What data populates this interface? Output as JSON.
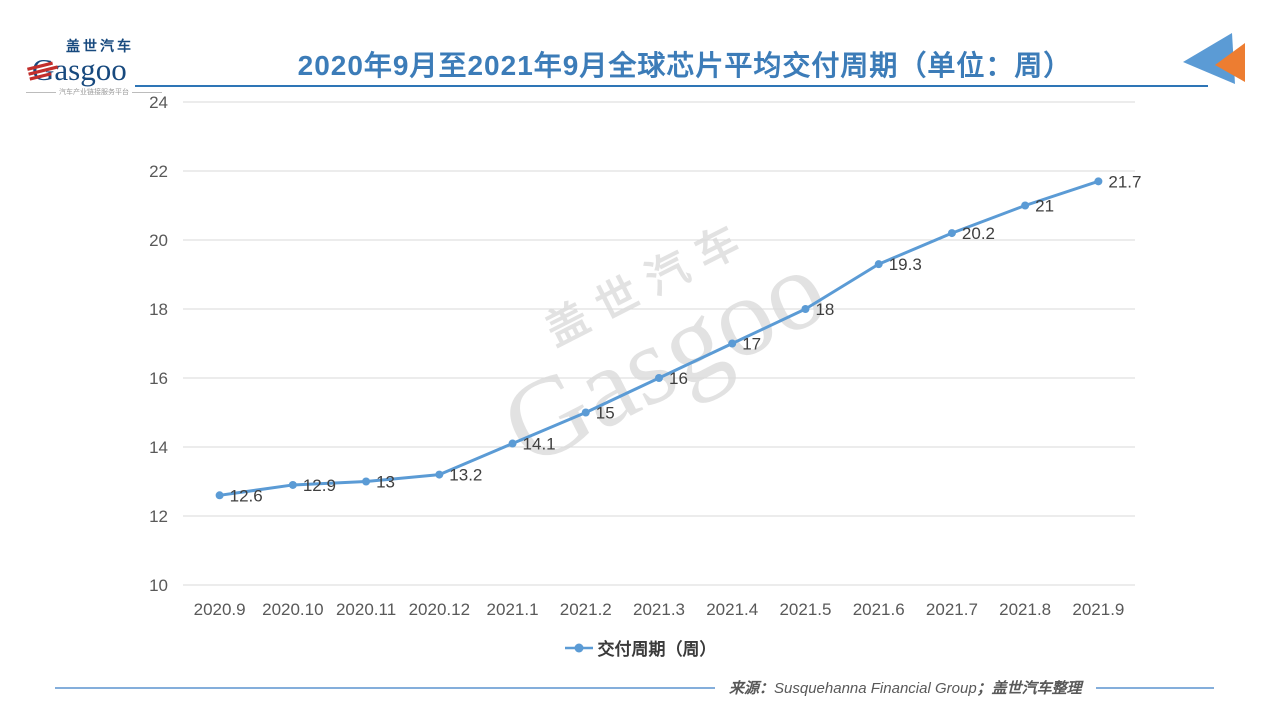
{
  "header": {
    "logo": {
      "cn": "盖世汽车",
      "en": "Gasgoo",
      "tagline": "汽车产业链接服务平台"
    },
    "title": "2020年9月至2021年9月全球芯片平均交付周期（单位：周）"
  },
  "chart_data": {
    "type": "line",
    "title": "2020年9月至2021年9月全球芯片平均交付周期（单位：周）",
    "categories": [
      "2020.9",
      "2020.10",
      "2020.11",
      "2020.12",
      "2021.1",
      "2021.2",
      "2021.3",
      "2021.4",
      "2021.5",
      "2021.6",
      "2021.7",
      "2021.8",
      "2021.9"
    ],
    "series": [
      {
        "name": "交付周期（周）",
        "color": "#5B9BD5",
        "marker": "circle",
        "values": [
          12.6,
          12.9,
          13,
          13.2,
          14.1,
          15,
          16,
          17,
          18,
          19.3,
          20.2,
          21,
          21.7
        ]
      }
    ],
    "xlabel": "",
    "ylabel": "",
    "ylim": [
      10,
      24
    ],
    "yticks": [
      10,
      12,
      14,
      16,
      18,
      20,
      22,
      24
    ],
    "grid": true,
    "data_labels": true,
    "legend_position": "bottom"
  },
  "watermark": {
    "cn": "盖世汽车",
    "en": "Gasgoo"
  },
  "footer": {
    "prefix": "来源：",
    "source": "Susquehanna Financial Group",
    "suffix": "；盖世汽车整理"
  },
  "colors": {
    "series": "#5B9BD5",
    "title": "#3C7CB8",
    "underline": "#2E75B6",
    "grid": "#D9D9D9",
    "axis_text": "#595959",
    "data_label": "#3F3F3F",
    "footer_line": "#84AEDB",
    "logo_navy": "#17497E",
    "logo_red": "#C22F2C",
    "triangle_blue": "#5B9BD5",
    "triangle_orange": "#ED7D31"
  }
}
